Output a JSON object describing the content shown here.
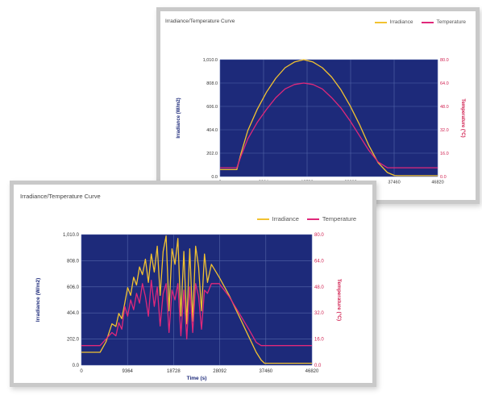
{
  "colors": {
    "plot_bg": "#1d2a7a",
    "grid": "#5566aa",
    "irradiance": "#f2c230",
    "temperature": "#e0287a",
    "left_axis_text": "#1d2a7a",
    "right_axis_text": "#d02050"
  },
  "chart_data": [
    {
      "id": "back",
      "type": "line",
      "title": "Irradiance/Temperature Curve",
      "legend": [
        "Irradiance",
        "Temperature"
      ],
      "legend_position": "top-right",
      "xlabel": "",
      "ylabel_left": "Irradiance (W/m2)",
      "ylabel_right": "Temperature (°C)",
      "x_ticks": [
        "0",
        "9364",
        "18728",
        "28092",
        "37460",
        "46820"
      ],
      "xlim": [
        0,
        46820
      ],
      "y_left_ticks": [
        "0.0",
        "202.0",
        "404.0",
        "606.0",
        "808.0",
        "1,010.0"
      ],
      "y_left_lim": [
        0,
        1010
      ],
      "y_right_ticks": [
        "0.0",
        "16.0",
        "32.0",
        "48.0",
        "64.0",
        "80.0"
      ],
      "y_right_lim": [
        0,
        80
      ],
      "grid": true,
      "series": [
        {
          "name": "Irradiance",
          "axis": "left",
          "x": [
            0,
            3600,
            4500,
            6000,
            8000,
            10000,
            12000,
            14000,
            16000,
            18000,
            20000,
            22000,
            24000,
            26000,
            28000,
            30000,
            32000,
            34000,
            36000,
            37500,
            38200,
            46820
          ],
          "y": [
            60,
            60,
            200,
            400,
            580,
            730,
            850,
            940,
            990,
            1010,
            990,
            940,
            860,
            750,
            610,
            450,
            270,
            120,
            35,
            10,
            8,
            8
          ]
        },
        {
          "name": "Temperature",
          "axis": "right",
          "x": [
            0,
            3600,
            4500,
            6000,
            8000,
            10000,
            12000,
            14000,
            16000,
            18000,
            20000,
            22000,
            24000,
            26000,
            28000,
            30000,
            32000,
            34000,
            36000,
            37500,
            38200,
            46820
          ],
          "y": [
            6,
            6,
            14,
            26,
            37,
            46,
            54,
            60,
            63,
            64,
            63,
            60,
            54,
            47,
            38,
            28,
            18,
            10,
            6,
            6,
            6,
            6
          ]
        }
      ]
    },
    {
      "id": "front",
      "type": "line",
      "title": "Irradiance/Temperature Curve",
      "legend": [
        "Irradiance",
        "Temperature"
      ],
      "legend_position": "top-right",
      "xlabel": "Time (s)",
      "ylabel_left": "Irradiance (W/m2)",
      "ylabel_right": "Temperature (°C)",
      "x_ticks": [
        "0",
        "9364",
        "18728",
        "28092",
        "37460",
        "46820"
      ],
      "xlim": [
        0,
        46820
      ],
      "y_left_ticks": [
        "0.0",
        "202.0",
        "404.0",
        "606.0",
        "808.0",
        "1,010.0"
      ],
      "y_left_lim": [
        0,
        1010
      ],
      "y_right_ticks": [
        "0.0",
        "16.0",
        "32.0",
        "48.0",
        "64.0",
        "80.0"
      ],
      "y_right_lim": [
        0,
        80
      ],
      "grid": true,
      "series": [
        {
          "name": "Irradiance",
          "axis": "left",
          "x": [
            0,
            3800,
            5000,
            6200,
            7000,
            7600,
            8200,
            8800,
            9400,
            10000,
            10600,
            11200,
            11800,
            12400,
            13000,
            13600,
            14200,
            14800,
            15400,
            16000,
            16600,
            17200,
            17800,
            18400,
            19000,
            19600,
            20200,
            20800,
            21400,
            22000,
            22600,
            23200,
            23800,
            24400,
            25000,
            25600,
            26400,
            28000,
            30000,
            32000,
            34000,
            35500,
            36500,
            37200,
            46820
          ],
          "y": [
            100,
            100,
            180,
            320,
            300,
            400,
            360,
            480,
            600,
            540,
            680,
            620,
            760,
            700,
            820,
            640,
            860,
            720,
            920,
            540,
            880,
            1000,
            420,
            900,
            780,
            980,
            380,
            880,
            320,
            900,
            340,
            920,
            760,
            420,
            860,
            640,
            780,
            680,
            540,
            380,
            220,
            100,
            40,
            15,
            15
          ]
        },
        {
          "name": "Temperature",
          "axis": "right",
          "x": [
            0,
            3800,
            5000,
            6200,
            7000,
            7600,
            8200,
            8800,
            9400,
            10000,
            10600,
            11200,
            11800,
            12400,
            13000,
            13600,
            14200,
            14800,
            15400,
            16000,
            16600,
            17200,
            17800,
            18400,
            19000,
            19600,
            20200,
            20800,
            21400,
            22000,
            22600,
            23200,
            23800,
            24400,
            25000,
            25600,
            26400,
            28000,
            30000,
            32000,
            34000,
            35500,
            36500,
            37200,
            46820
          ],
          "y": [
            12,
            12,
            16,
            20,
            18,
            26,
            22,
            36,
            30,
            40,
            34,
            44,
            38,
            50,
            42,
            30,
            52,
            36,
            48,
            24,
            44,
            50,
            20,
            46,
            40,
            50,
            18,
            46,
            16,
            48,
            20,
            50,
            42,
            22,
            46,
            44,
            50,
            50,
            42,
            32,
            22,
            14,
            12,
            12,
            12
          ]
        }
      ]
    }
  ]
}
